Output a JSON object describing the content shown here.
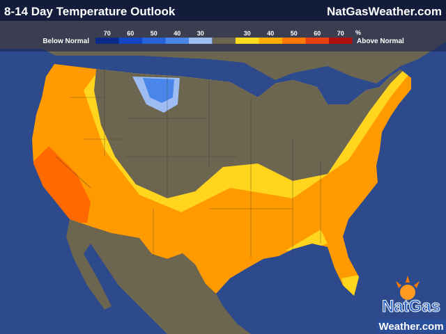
{
  "header": {
    "title": "8-14 Day Temperature Outlook",
    "site": "NatGasWeather.com"
  },
  "legend": {
    "below_label": "Below Normal",
    "above_label": "Above Normal",
    "unit": "%",
    "below": [
      {
        "label": "70",
        "color": "#0b2a8a"
      },
      {
        "label": "60",
        "color": "#1346c4"
      },
      {
        "label": "50",
        "color": "#2663d8"
      },
      {
        "label": "40",
        "color": "#4a86ea"
      },
      {
        "label": "30",
        "color": "#9dbcf2"
      }
    ],
    "above": [
      {
        "label": "30",
        "color": "#ffdc1e"
      },
      {
        "label": "40",
        "color": "#ffae00"
      },
      {
        "label": "50",
        "color": "#ff7800"
      },
      {
        "label": "60",
        "color": "#e8400e"
      },
      {
        "label": "70",
        "color": "#ae1010"
      }
    ]
  },
  "logo": {
    "line1": "NatGas",
    "line2": "Weather.com"
  }
}
